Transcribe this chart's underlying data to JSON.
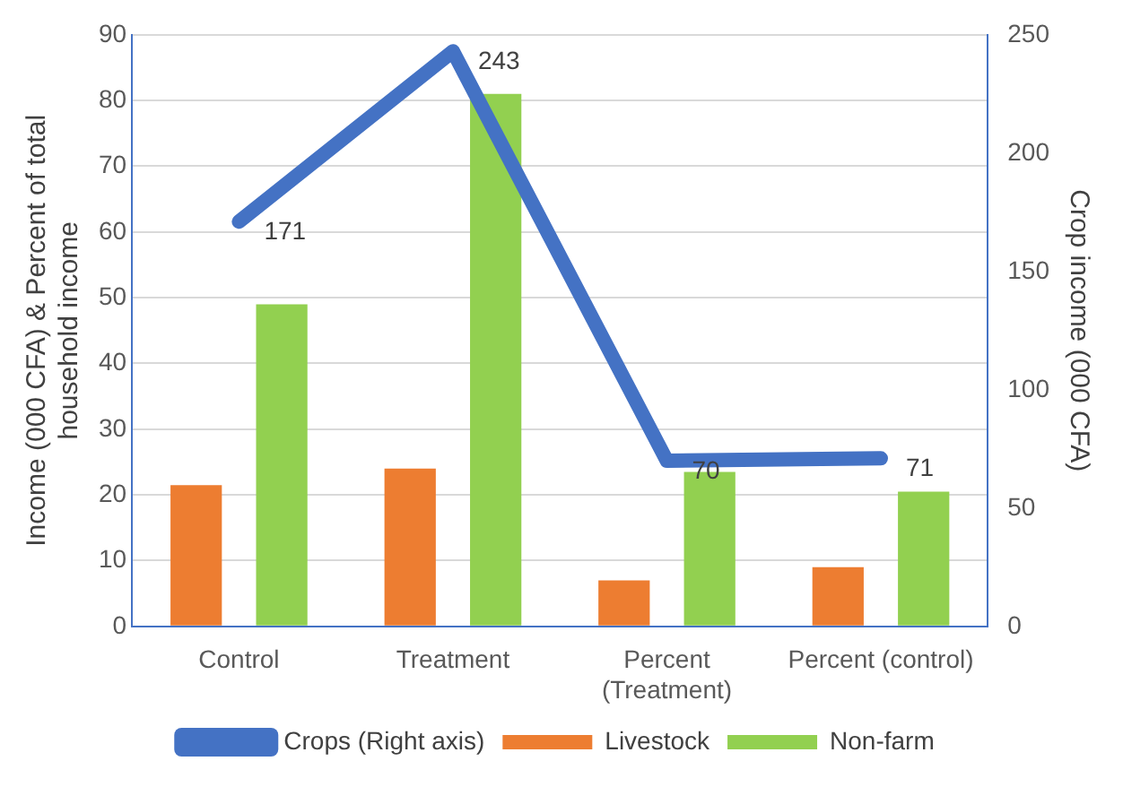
{
  "chart_data": {
    "type": "bar",
    "categories": [
      "Control",
      "Treatment",
      "Percent (Treatment)",
      "Percent (control)"
    ],
    "ylabel": "Income (000 CFA) & Percent of total household income",
    "y2label": "Crop income (000 CFA)",
    "series": [
      {
        "name": "Livestock",
        "color": "#ed7d31",
        "values": [
          21.5,
          24,
          7,
          9
        ]
      },
      {
        "name": "Non-farm",
        "color": "#92d050",
        "values": [
          49,
          81,
          23.5,
          20.5
        ]
      },
      {
        "name": "Crops (Right axis)",
        "type": "line",
        "axis": "y2",
        "color": "#4472c4",
        "values": [
          171,
          243,
          70,
          71
        ],
        "value_labels": [
          "171",
          "243",
          "70",
          "71"
        ]
      }
    ],
    "ylim": [
      0,
      90
    ],
    "yticks": [
      0,
      10,
      20,
      30,
      40,
      50,
      60,
      70,
      80,
      90
    ],
    "y2lim": [
      0,
      250
    ],
    "y2ticks": [
      0,
      50,
      100,
      150,
      200,
      250
    ],
    "grid": "y",
    "legend": "bottom"
  }
}
